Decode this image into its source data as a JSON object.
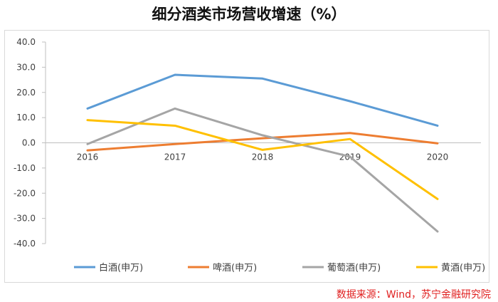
{
  "title": "细分酒类市场营收增速（%）",
  "source": "数据来源：Wind，苏宁金融研究院",
  "chart_data": {
    "type": "line",
    "title": "细分酒类市场营收增速（%）",
    "categories": [
      "2016",
      "2017",
      "2018",
      "2019",
      "2020"
    ],
    "ylim": [
      -40,
      40
    ],
    "yticks": [
      "40.0",
      "30.0",
      "20.0",
      "10.0",
      "0.0",
      "-10.0",
      "-20.0",
      "-30.0",
      "-40.0"
    ],
    "grid": false,
    "legend_position": "bottom",
    "series": [
      {
        "name": "白酒(申万)",
        "color": "#5b9bd5",
        "values": [
          13.6,
          27.0,
          25.5,
          16.5,
          6.8
        ]
      },
      {
        "name": "啤酒(申万)",
        "color": "#ed7d31",
        "values": [
          -3.0,
          -0.5,
          1.8,
          3.9,
          -0.2
        ]
      },
      {
        "name": "葡萄酒(申万)",
        "color": "#a5a5a5",
        "values": [
          -0.5,
          13.6,
          3.0,
          -5.5,
          -35.2
        ]
      },
      {
        "name": "黄酒(申万)",
        "color": "#ffc000",
        "values": [
          9.0,
          6.8,
          -2.8,
          1.5,
          -22.3
        ]
      }
    ]
  }
}
